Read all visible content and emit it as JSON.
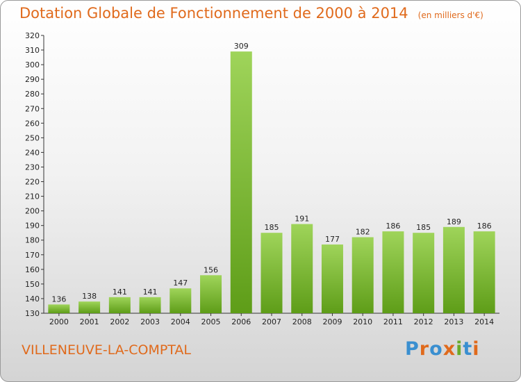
{
  "header": {
    "title": "Dotation Globale de Fonctionnement de 2000 à 2014",
    "unit": "(en milliers d'€)"
  },
  "footer": {
    "place": "VILLENEUVE-LA-COMPTAL",
    "logo": "Proxiti"
  },
  "colors": {
    "title": "#e06a1c",
    "bar_top": "#9fd45a",
    "bar_bottom": "#5e9d18"
  },
  "chart_data": {
    "type": "bar",
    "title": "Dotation Globale de Fonctionnement de 2000 à 2014",
    "categories": [
      "2000",
      "2001",
      "2002",
      "2003",
      "2004",
      "2005",
      "2006",
      "2007",
      "2008",
      "2009",
      "2010",
      "2011",
      "2012",
      "2013",
      "2014"
    ],
    "values": [
      136,
      138,
      141,
      141,
      147,
      156,
      309,
      185,
      191,
      177,
      182,
      186,
      185,
      189,
      186
    ],
    "ylim": [
      130,
      320
    ],
    "ytick_step": 10,
    "grid": false,
    "legend": "none"
  }
}
